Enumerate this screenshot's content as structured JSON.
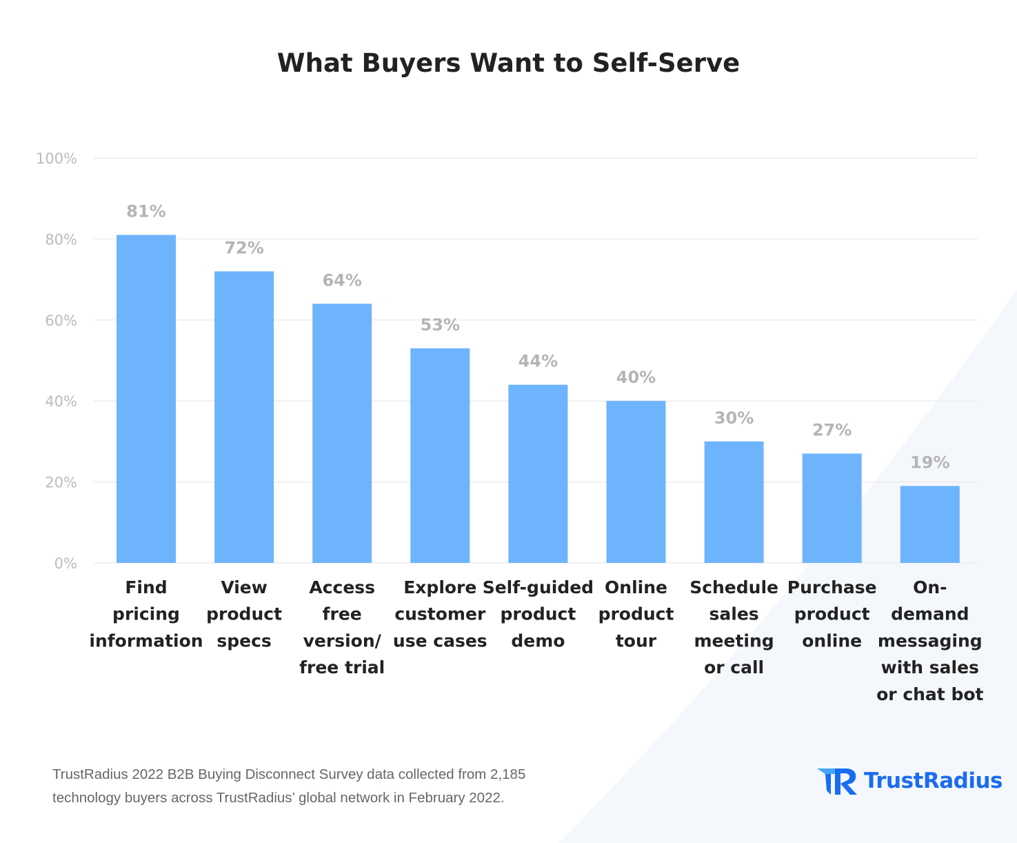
{
  "chart_data": {
    "type": "bar",
    "title": "What Buyers Want to Self-Serve",
    "categories": [
      [
        "Find",
        "pricing",
        "information"
      ],
      [
        "View",
        "product",
        "specs"
      ],
      [
        "Access",
        "free",
        "version/",
        "free trial"
      ],
      [
        "Explore",
        "customer",
        "use cases"
      ],
      [
        "Self-guided",
        "product",
        "demo"
      ],
      [
        "Online",
        "product",
        "tour"
      ],
      [
        "Schedule",
        "sales",
        "meeting",
        "or call"
      ],
      [
        "Purchase",
        "product",
        "online"
      ],
      [
        "On-",
        "demand",
        "messaging",
        "with sales",
        "or chat bot"
      ]
    ],
    "values": [
      81,
      72,
      64,
      53,
      44,
      40,
      30,
      27,
      19
    ],
    "data_labels": [
      "81%",
      "72%",
      "64%",
      "53%",
      "44%",
      "40%",
      "30%",
      "27%",
      "19%"
    ],
    "yticks": [
      "0%",
      "20%",
      "40%",
      "60%",
      "80%",
      "100%"
    ],
    "ylim": [
      0,
      100
    ],
    "grid": true,
    "xlabel": "",
    "ylabel": "",
    "bar_color": "#6eb4fd"
  },
  "footer": {
    "line1": "TrustRadius 2022 B2B Buying Disconnect Survey data collected from 2,185",
    "line2": "technology buyers across TrustRadius’ global network in February 2022."
  },
  "logo": {
    "text": "TrustRadius",
    "color": "#1a6cf0"
  }
}
